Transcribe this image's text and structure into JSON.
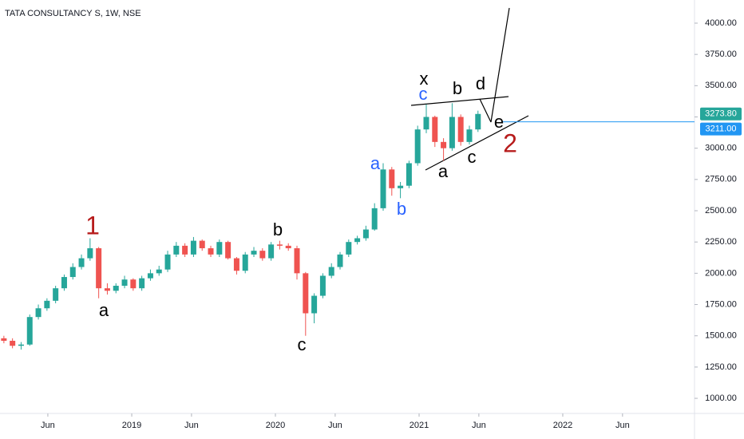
{
  "chart_data": {
    "type": "candlestick",
    "title": "TATA CONSULTANCY S, 1W, NSE",
    "x": [
      2018.11,
      2018.17,
      2018.23,
      2018.29,
      2018.35,
      2018.41,
      2018.47,
      2018.53,
      2018.59,
      2018.65,
      2018.71,
      2018.77,
      2018.83,
      2018.89,
      2018.95,
      2019.01,
      2019.07,
      2019.13,
      2019.19,
      2019.25,
      2019.31,
      2019.37,
      2019.43,
      2019.49,
      2019.55,
      2019.61,
      2019.67,
      2019.73,
      2019.79,
      2019.85,
      2019.91,
      2019.97,
      2020.03,
      2020.09,
      2020.15,
      2020.21,
      2020.27,
      2020.33,
      2020.39,
      2020.45,
      2020.51,
      2020.57,
      2020.63,
      2020.69,
      2020.75,
      2020.81,
      2020.87,
      2020.93,
      2020.99,
      2021.05,
      2021.11,
      2021.17,
      2021.23,
      2021.29,
      2021.35,
      2021.41
    ],
    "open": [
      1480,
      1460,
      1420,
      1430,
      1650,
      1720,
      1780,
      1880,
      1970,
      2050,
      2120,
      2200,
      1880,
      1860,
      1900,
      1950,
      1880,
      1960,
      2000,
      2030,
      2150,
      2220,
      2150,
      2260,
      2200,
      2150,
      2250,
      2120,
      2020,
      2150,
      2180,
      2120,
      2230,
      2220,
      2200,
      2000,
      1680,
      1820,
      1980,
      2050,
      2150,
      2250,
      2280,
      2350,
      2520,
      2830,
      2680,
      2700,
      2880,
      3150,
      3250,
      3050,
      3000,
      3250,
      3050,
      3150
    ],
    "high": [
      1500,
      1480,
      1450,
      1670,
      1750,
      1800,
      1900,
      1990,
      2080,
      2150,
      2280,
      2210,
      1920,
      1920,
      1980,
      1960,
      1980,
      2030,
      2060,
      2180,
      2250,
      2240,
      2290,
      2270,
      2220,
      2270,
      2260,
      2130,
      2170,
      2210,
      2200,
      2250,
      2260,
      2240,
      2220,
      2010,
      1840,
      2000,
      2080,
      2170,
      2270,
      2300,
      2380,
      2560,
      2880,
      2850,
      2730,
      2900,
      3180,
      3350,
      3260,
      3080,
      3360,
      3270,
      3180,
      3300
    ],
    "low": [
      1440,
      1400,
      1390,
      1420,
      1630,
      1700,
      1760,
      1860,
      1950,
      2030,
      2100,
      1800,
      1830,
      1840,
      1880,
      1860,
      1860,
      1940,
      1980,
      2010,
      2130,
      2130,
      2130,
      2180,
      2130,
      2130,
      2110,
      1990,
      2000,
      2130,
      2100,
      2100,
      2190,
      2180,
      1950,
      1500,
      1600,
      1800,
      1960,
      2030,
      2130,
      2230,
      2260,
      2340,
      2500,
      2620,
      2600,
      2680,
      2860,
      3120,
      3010,
      2900,
      2980,
      3020,
      3030,
      3130
    ],
    "close": [
      1460,
      1420,
      1430,
      1650,
      1720,
      1780,
      1880,
      1970,
      2050,
      2120,
      2200,
      1880,
      1860,
      1900,
      1950,
      1880,
      1960,
      2000,
      2030,
      2150,
      2220,
      2150,
      2260,
      2200,
      2150,
      2250,
      2120,
      2020,
      2150,
      2180,
      2120,
      2230,
      2220,
      2200,
      2000,
      1680,
      1820,
      1980,
      2050,
      2150,
      2250,
      2280,
      2350,
      2520,
      2830,
      2680,
      2700,
      2880,
      3150,
      3250,
      3050,
      3000,
      3250,
      3050,
      3150,
      3273.8
    ],
    "up_color": "#26a69a",
    "down_color": "#ef5350",
    "xlim": [
      2018.083,
      2022.917
    ],
    "xticks": [
      {
        "value": 2018.416,
        "label": "Jun"
      },
      {
        "value": 2019,
        "label": "2019"
      },
      {
        "value": 2019.416,
        "label": "Jun"
      },
      {
        "value": 2020,
        "label": "2020"
      },
      {
        "value": 2020.416,
        "label": "Jun"
      },
      {
        "value": 2021,
        "label": "2021"
      },
      {
        "value": 2021.416,
        "label": "Jun"
      },
      {
        "value": 2022,
        "label": "2022"
      },
      {
        "value": 2022.416,
        "label": "Jun"
      }
    ],
    "ylim": [
      879,
      4185
    ],
    "yticks": [
      {
        "value": 1000,
        "label": "1000.00"
      },
      {
        "value": 1250,
        "label": "1250.00"
      },
      {
        "value": 1500,
        "label": "1500.00"
      },
      {
        "value": 1750,
        "label": "1750.00"
      },
      {
        "value": 2000,
        "label": "2000.00"
      },
      {
        "value": 2250,
        "label": "2250.00"
      },
      {
        "value": 2500,
        "label": "2500.00"
      },
      {
        "value": 2750,
        "label": "2750.00"
      },
      {
        "value": 3000,
        "label": "3000.00"
      },
      {
        "value": 3250,
        "label": "3250.00"
      },
      {
        "value": 3500,
        "label": "3500.00"
      },
      {
        "value": 3750,
        "label": "3750.00"
      },
      {
        "value": 4000,
        "label": "4000.00"
      }
    ],
    "last_price": {
      "value": 3273.8,
      "label": "3273.80",
      "color": "#26a69a"
    },
    "level": {
      "value": 3211,
      "label": "3211.00",
      "color": "#2196f3"
    },
    "annotations": [
      "1",
      "a",
      "b",
      "c",
      "a",
      "b",
      "c",
      "x",
      "b",
      "d",
      "a",
      "c",
      "e",
      "2"
    ]
  }
}
